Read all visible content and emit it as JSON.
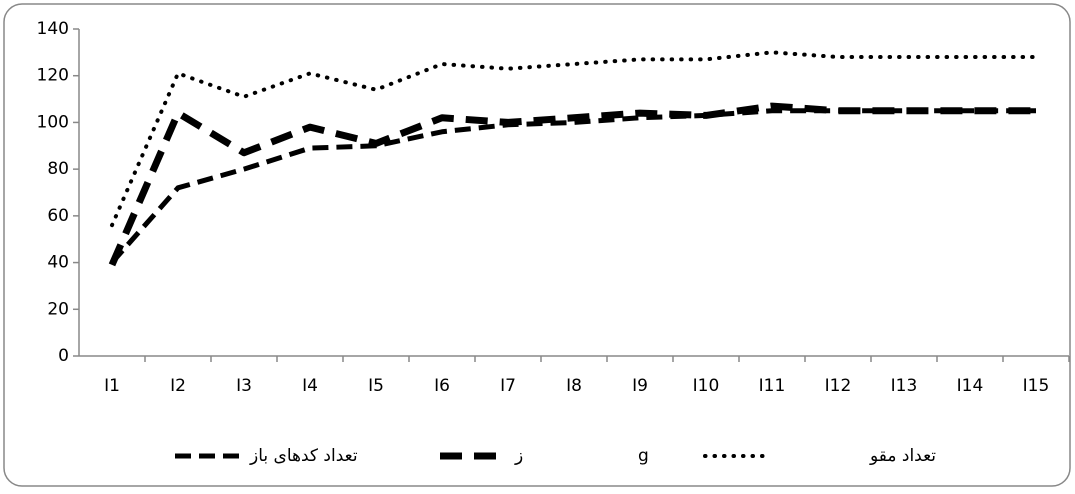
{
  "chart_data": {
    "type": "line",
    "categories": [
      "I1",
      "I2",
      "I3",
      "I4",
      "I5",
      "I6",
      "I7",
      "I8",
      "I9",
      "I10",
      "I11",
      "I12",
      "I13",
      "I14",
      "I15"
    ],
    "series": [
      {
        "name": "تعداد کدهای باز",
        "color": "#000000",
        "values": [
          40,
          72,
          80,
          89,
          90,
          96,
          99,
          100,
          102,
          103,
          105,
          105,
          105,
          105,
          105
        ]
      },
      {
        "name": "ز",
        "color": "#000000",
        "values": [
          39,
          104,
          87,
          98,
          91,
          102,
          100,
          102,
          104,
          103,
          107,
          105,
          105,
          105,
          105
        ]
      },
      {
        "name": "g",
        "color": "#000000",
        "values": [
          null,
          null,
          null,
          null,
          null,
          null,
          null,
          null,
          null,
          null,
          null,
          null,
          null,
          null,
          null
        ]
      },
      {
        "name": "تعداد مقو",
        "color": "#000000",
        "values": [
          56,
          121,
          111,
          121,
          114,
          125,
          123,
          125,
          127,
          127,
          130,
          128,
          128,
          128,
          128
        ]
      }
    ],
    "ylim": [
      0,
      140
    ],
    "yticks": [
      0,
      20,
      40,
      60,
      80,
      100,
      120,
      140
    ],
    "grid": false,
    "legend": "bottom"
  }
}
